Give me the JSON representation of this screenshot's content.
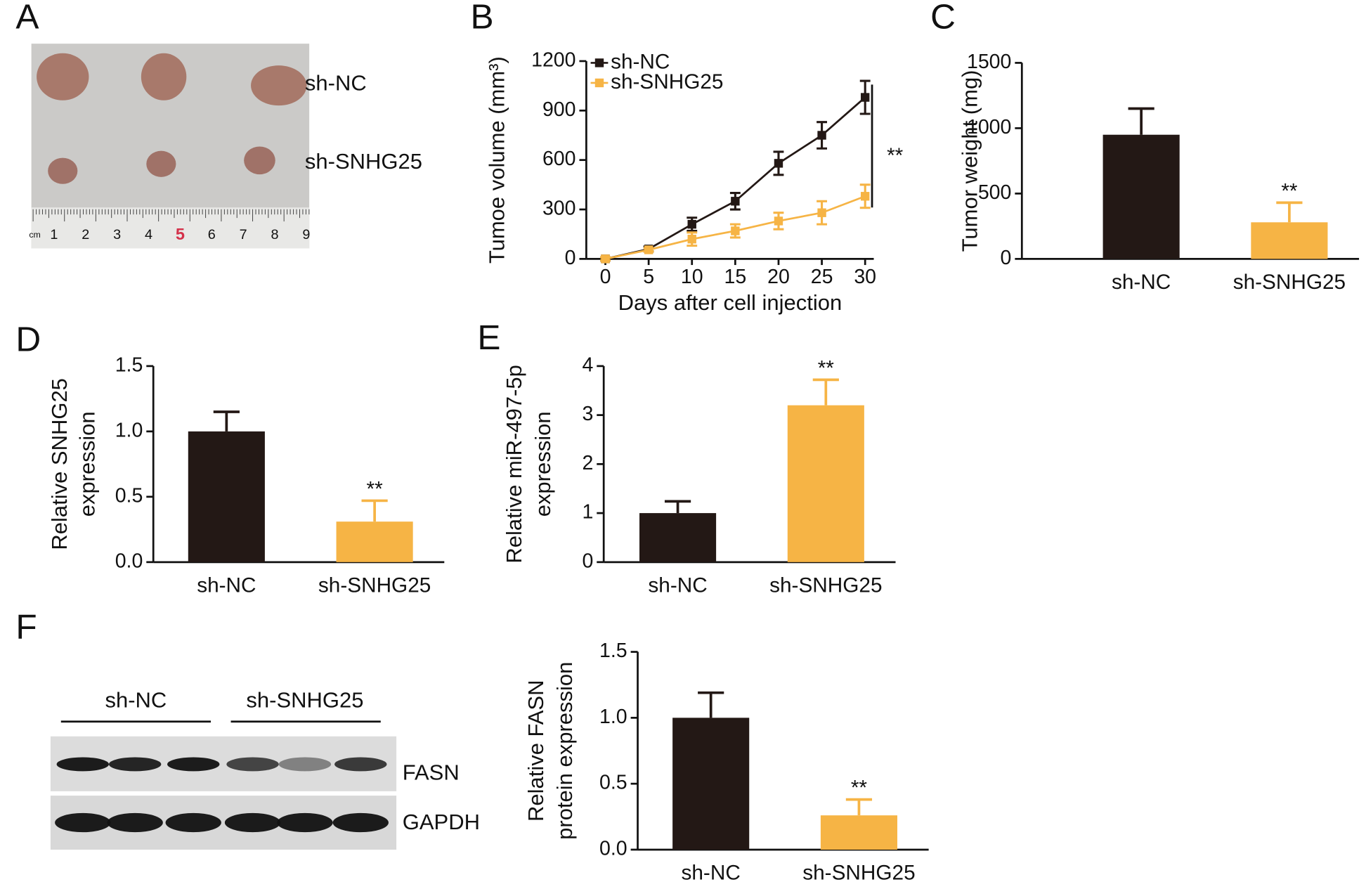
{
  "panel_labels": [
    "A",
    "B",
    "C",
    "D",
    "E",
    "F"
  ],
  "photo": {
    "labels": [
      "sh-NC",
      "sh-SNHG25"
    ],
    "ruler_labels": [
      "cm",
      "1",
      "2",
      "3",
      "4",
      "5",
      "6",
      "7",
      "8",
      "9"
    ]
  },
  "blot": {
    "groups": [
      "sh-NC",
      "sh-SNHG25"
    ],
    "rows": [
      "FASN",
      "GAPDH"
    ]
  },
  "chart_data": [
    {
      "type": "line",
      "ylabel": "Tumoe volume (mm³)",
      "xlabel": "Days after cell injection",
      "x": [
        0,
        5,
        10,
        15,
        20,
        25,
        30
      ],
      "xlim": [
        -2,
        31
      ],
      "xticks": [
        0,
        5,
        10,
        15,
        20,
        25,
        30
      ],
      "ylim": [
        0,
        1200
      ],
      "yticks": [
        0,
        300,
        600,
        900,
        1200
      ],
      "annotation": "**",
      "series": [
        {
          "name": "sh-NC",
          "color": "#231815",
          "values": [
            0,
            60,
            210,
            350,
            580,
            750,
            980
          ],
          "errors": [
            10,
            15,
            40,
            50,
            70,
            80,
            100
          ]
        },
        {
          "name": "sh-SNHG25",
          "color": "#f6b445",
          "values": [
            0,
            55,
            120,
            170,
            230,
            280,
            380
          ],
          "errors": [
            10,
            10,
            40,
            40,
            50,
            70,
            70
          ]
        }
      ]
    },
    {
      "type": "bar",
      "ylabel": [
        "Tumor weight (mg)"
      ],
      "categories": [
        "sh-NC",
        "sh-SNHG25"
      ],
      "values": [
        950,
        280
      ],
      "errors": [
        200,
        150
      ],
      "colors": [
        "#231815",
        "#f6b445"
      ],
      "ylim": [
        0,
        1500
      ],
      "yticks": [
        0,
        500,
        1000,
        1500
      ],
      "annotation": "**"
    },
    {
      "type": "bar",
      "ylabel": [
        "Relative SNHG25",
        "expression"
      ],
      "categories": [
        "sh-NC",
        "sh-SNHG25"
      ],
      "values": [
        1.0,
        0.31
      ],
      "errors": [
        0.15,
        0.16
      ],
      "colors": [
        "#231815",
        "#f6b445"
      ],
      "ylim": [
        0,
        1.5
      ],
      "yticks": [
        {
          "value": 0,
          "label": "0.0"
        },
        0.5,
        {
          "value": 1,
          "label": "1.0"
        },
        1.5
      ],
      "annotation": "**"
    },
    {
      "type": "bar",
      "ylabel": [
        "Relative miR-497-5p",
        "expression"
      ],
      "categories": [
        "sh-NC",
        "sh-SNHG25"
      ],
      "values": [
        1.0,
        3.2
      ],
      "errors": [
        0.24,
        0.52
      ],
      "colors": [
        "#231815",
        "#f6b445"
      ],
      "ylim": [
        0,
        4
      ],
      "yticks": [
        0,
        1,
        2,
        3,
        4
      ],
      "annotation": "**"
    },
    {
      "type": "bar",
      "ylabel": [
        "Relative FASN",
        "protein expression"
      ],
      "categories": [
        "sh-NC",
        "sh-SNHG25"
      ],
      "values": [
        1.0,
        0.26
      ],
      "errors": [
        0.19,
        0.12
      ],
      "colors": [
        "#231815",
        "#f6b445"
      ],
      "ylim": [
        0,
        1.5
      ],
      "yticks": [
        {
          "value": 0,
          "label": "0.0"
        },
        0.5,
        {
          "value": 1,
          "label": "1.0"
        },
        1.5
      ],
      "annotation": "**"
    }
  ]
}
